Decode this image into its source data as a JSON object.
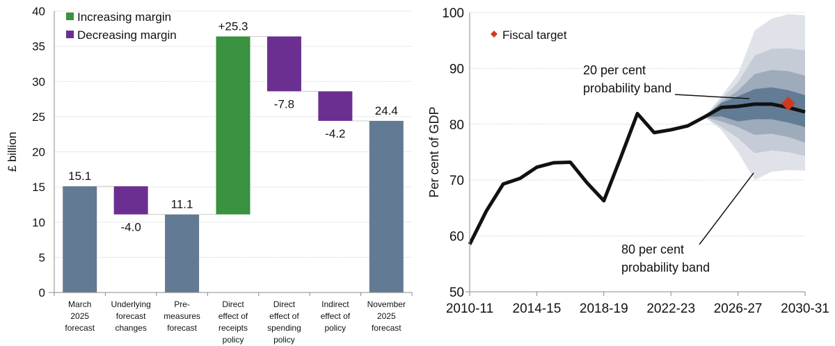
{
  "chart_data": [
    {
      "type": "bar",
      "subtype": "waterfall",
      "ylabel": "£ billion",
      "ylim": [
        0,
        40
      ],
      "yticks": [
        "0",
        "5",
        "10",
        "15",
        "20",
        "25",
        "30",
        "35",
        "40"
      ],
      "grid": true,
      "legend": {
        "placement": "top-left",
        "entries": [
          {
            "label": "Increasing margin",
            "color": "#3a9140"
          },
          {
            "label": "Decreasing margin",
            "color": "#6b2f91"
          }
        ]
      },
      "total_color": "#627a93",
      "categories": [
        [
          "March",
          "2025",
          "forecast"
        ],
        [
          "Underlying",
          "forecast",
          "changes"
        ],
        [
          "Pre-",
          "measures",
          "forecast"
        ],
        [
          "Direct",
          "effect of",
          "receipts",
          "policy"
        ],
        [
          "Direct",
          "effect of",
          "spending",
          "policy"
        ],
        [
          "Indirect",
          "effect of",
          "policy"
        ],
        [
          "November",
          "2025",
          "forecast"
        ]
      ],
      "values": [
        15.1,
        -4.0,
        11.1,
        25.3,
        -7.8,
        -4.2,
        24.4
      ],
      "kinds": [
        "total",
        "decrease",
        "total",
        "increase",
        "decrease",
        "decrease",
        "total"
      ],
      "data_labels": [
        "15.1",
        "-4.0",
        "11.1",
        "+25.3",
        "-7.8",
        "-4.2",
        "24.4"
      ]
    },
    {
      "type": "line",
      "subtype": "fan",
      "ylabel": "Per cent of GDP",
      "ylim": [
        50,
        100
      ],
      "yticks": [
        "50",
        "60",
        "70",
        "80",
        "90",
        "100"
      ],
      "xticks": [
        "2010-11",
        "2014-15",
        "2018-19",
        "2022-23",
        "2026-27",
        "2030-31"
      ],
      "grid": true,
      "x": [
        "2010-11",
        "2011-12",
        "2012-13",
        "2013-14",
        "2014-15",
        "2015-16",
        "2016-17",
        "2017-18",
        "2018-19",
        "2019-20",
        "2020-21",
        "2021-22",
        "2022-23",
        "2023-24",
        "2024-25",
        "2025-26",
        "2026-27",
        "2027-28",
        "2028-29",
        "2029-30",
        "2030-31"
      ],
      "central": [
        58.5,
        64.5,
        69.3,
        70.3,
        72.3,
        73.1,
        73.2,
        69.5,
        66.3,
        74.0,
        81.9,
        78.5,
        79.0,
        79.7,
        81.3,
        83.0,
        83.2,
        83.6,
        83.6,
        83.0,
        82.2
      ],
      "fan_x": [
        "2024-25",
        "2025-26",
        "2026-27",
        "2027-28",
        "2028-29",
        "2029-30",
        "2030-31"
      ],
      "fan_bands": [
        {
          "upper": [
            81.3,
            85.0,
            89.0,
            96.8,
            98.9,
            99.7,
            99.5
          ],
          "lower": [
            81.3,
            79.0,
            75.0,
            70.0,
            71.5,
            71.8,
            71.7
          ],
          "color": "#dfe3e9"
        },
        {
          "upper": [
            81.3,
            84.5,
            87.5,
            92.3,
            93.5,
            93.6,
            93.2
          ],
          "lower": [
            81.3,
            79.5,
            77.5,
            74.8,
            75.3,
            75.0,
            74.3
          ],
          "color": "#c5ccd6"
        },
        {
          "upper": [
            81.3,
            84.0,
            86.0,
            89.0,
            89.7,
            89.5,
            88.7
          ],
          "lower": [
            81.3,
            80.5,
            79.5,
            78.1,
            78.3,
            77.7,
            76.7
          ],
          "color": "#9eabbb"
        },
        {
          "upper": [
            81.3,
            83.8,
            85.0,
            86.3,
            86.6,
            86.1,
            85.2
          ],
          "lower": [
            81.3,
            81.4,
            80.5,
            80.9,
            80.9,
            80.3,
            79.5
          ],
          "color": "#637c95"
        }
      ],
      "fiscal_target": {
        "label": "Fiscal target",
        "x": "2029-30",
        "y": 83.7,
        "color": "#d03a1f"
      },
      "annotations": [
        {
          "lines": [
            "20 per cent",
            "probability band"
          ]
        },
        {
          "lines": [
            "80 per cent",
            "probability band"
          ]
        }
      ]
    }
  ]
}
